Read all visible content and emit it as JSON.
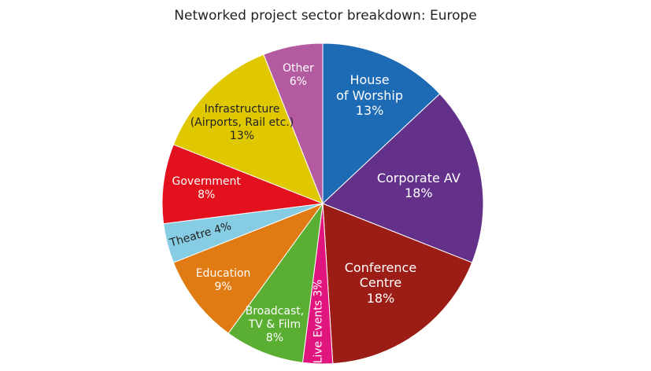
{
  "chart_data": {
    "type": "pie",
    "title": "Networked project sector breakdown: Europe",
    "categories": [
      "House\nof Worship",
      "Corporate AV",
      "Conference\nCentre",
      "Live Events",
      "Broadcast,\nTV & Film",
      "Education",
      "Theatre",
      "Government",
      "Infrastructure\n(Airports, Rail etc.)",
      "Other"
    ],
    "values": [
      13,
      18,
      18,
      3,
      8,
      9,
      4,
      8,
      13,
      6
    ],
    "value_labels": [
      "13%",
      "18%",
      "18%",
      "3%",
      "8%",
      "9%",
      "4%",
      "8%",
      "13%",
      "6%"
    ],
    "colors": [
      "#1d6bb5",
      "#63308a",
      "#9c1d16",
      "#e0167e",
      "#5aae32",
      "#e07a12",
      "#86cde3",
      "#e3101d",
      "#e0c800",
      "#b45aa1"
    ]
  }
}
